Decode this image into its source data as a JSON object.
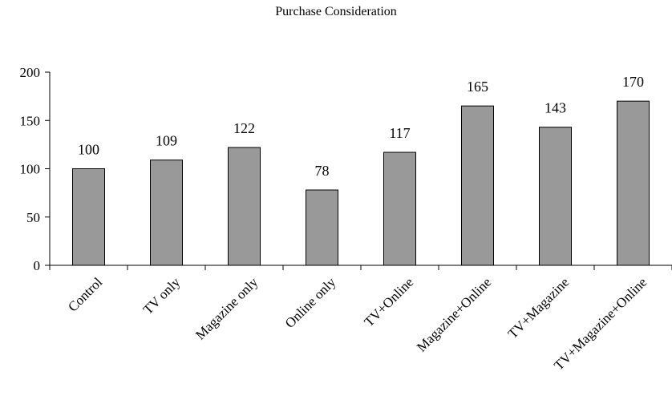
{
  "chart_data": {
    "type": "bar",
    "title": "Purchase Consideration",
    "categories": [
      "Control",
      "TV only",
      "Magazine only",
      "Online only",
      "TV+Online",
      "Magazine+Online",
      "TV+Magazine",
      "TV+Magazine+Online"
    ],
    "values": [
      100,
      109,
      122,
      78,
      117,
      165,
      143,
      170
    ],
    "xlabel": "",
    "ylabel": "",
    "ylim": [
      0,
      200
    ],
    "yticks": [
      0,
      50,
      100,
      150,
      200
    ],
    "grid": false,
    "bar_color": "#999999",
    "bar_edge_color": "#000000"
  }
}
